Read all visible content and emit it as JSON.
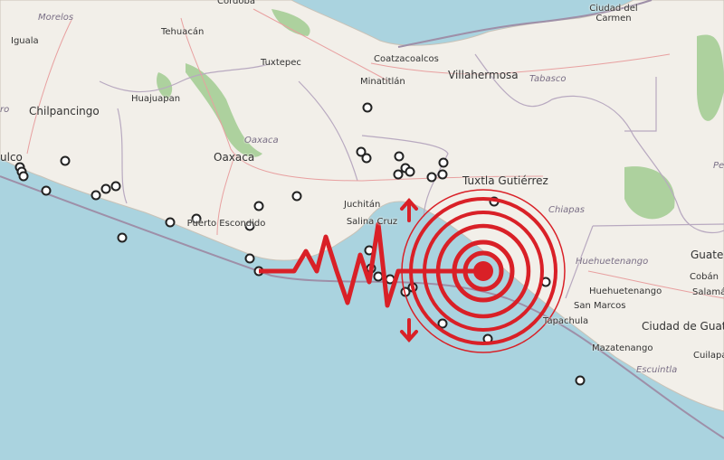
{
  "map": {
    "colors": {
      "water": "#aad3df",
      "land": "#f2efe9",
      "forest": "#add19e",
      "border": "#9e8fa8",
      "road": "#e8a0a0",
      "marker": "#222222",
      "quake": "#d92027"
    },
    "cities": [
      {
        "name": "Córdoba"
      },
      {
        "name": "Morelos"
      },
      {
        "name": "Iguala"
      },
      {
        "name": "Tehuacán"
      },
      {
        "name": "Tuxtepec"
      },
      {
        "name": "Huajuapan"
      },
      {
        "name": "Chilpancingo"
      },
      {
        "name": "Oaxaca"
      },
      {
        "name": "Oaxaca"
      },
      {
        "name": "ulco"
      },
      {
        "name": "Puerto Escondido"
      },
      {
        "name": "Juchitán"
      },
      {
        "name": "Salina Cruz"
      },
      {
        "name": "Coatzacoalcos"
      },
      {
        "name": "Minatitlán"
      },
      {
        "name": "Villahermosa"
      },
      {
        "name": "Tabasco"
      },
      {
        "name": "Ciudad del Carmen"
      },
      {
        "name": "Tuxtla Gutiérrez"
      },
      {
        "name": "Chiapas"
      },
      {
        "name": "Huehuetenango"
      },
      {
        "name": "Huehuetenango"
      },
      {
        "name": "Guate"
      },
      {
        "name": "Cobán"
      },
      {
        "name": "Salamá"
      },
      {
        "name": "San Marcos"
      },
      {
        "name": "Tapachula"
      },
      {
        "name": "Ciudad de Guaten"
      },
      {
        "name": "Mazatenango"
      },
      {
        "name": "Escuintla"
      },
      {
        "name": "Cuilapa"
      },
      {
        "name": "ro"
      },
      {
        "name": "Pe"
      }
    ],
    "legend_icons": [
      "earthquake-epicenter-icon",
      "seismograph-wave-icon",
      "arrow-up-icon",
      "arrow-down-icon",
      "epicenter-marker-icon"
    ]
  }
}
